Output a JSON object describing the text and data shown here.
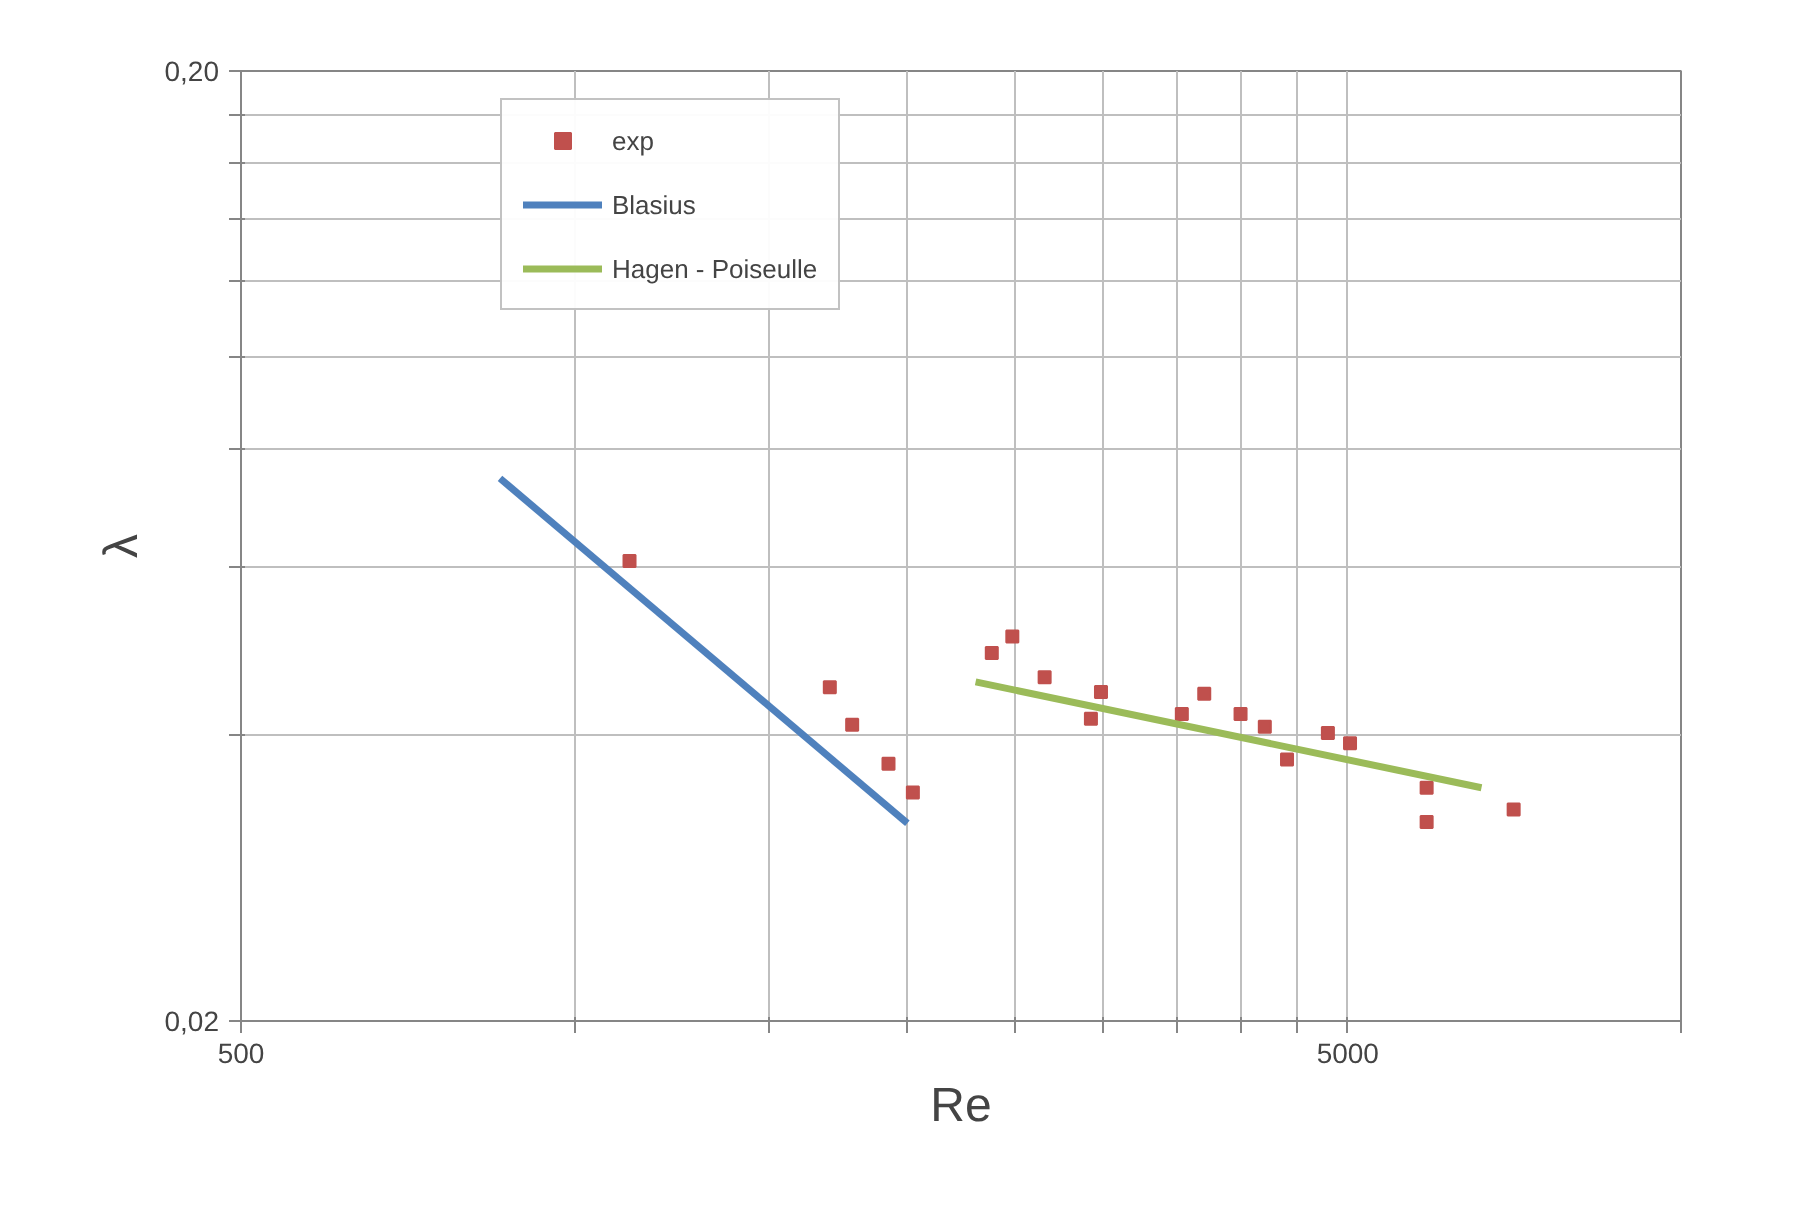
{
  "chart_data": {
    "type": "scatter",
    "xlabel": "Re",
    "ylabel": "λ",
    "log": "xy",
    "grid": true,
    "legend": "top left",
    "xlim": [
      500,
      10000
    ],
    "ylim": [
      0.02,
      0.2
    ],
    "xticks": [
      500,
      {
        "value": 1000,
        "label": null
      },
      {
        "value": 1500,
        "label": null
      },
      {
        "value": 2000,
        "label": null
      },
      {
        "value": 2500,
        "label": null
      },
      {
        "value": 3000,
        "label": null
      },
      {
        "value": 3500,
        "label": null
      },
      {
        "value": 4000,
        "label": null
      },
      {
        "value": 4500,
        "label": null
      },
      5000,
      {
        "value": 10000,
        "label": null
      }
    ],
    "yticks": [
      {
        "value": 0.02,
        "label": "0,02"
      },
      {
        "value": 0.04,
        "label": null
      },
      {
        "value": 0.06,
        "label": null
      },
      {
        "value": 0.08,
        "label": null
      },
      {
        "value": 0.1,
        "label": null
      },
      {
        "value": 0.12,
        "label": null
      },
      {
        "value": 0.14,
        "label": null
      },
      {
        "value": 0.16,
        "label": null
      },
      {
        "value": 0.18,
        "label": null
      },
      {
        "value": 0.2,
        "label": "0,20"
      }
    ],
    "series": [
      {
        "name": "exp",
        "marker": "square",
        "color": "#c0504d",
        "x": [
          1122,
          1702,
          1783,
          1923,
          2023,
          2384,
          2488,
          2661,
          2930,
          2992,
          3540,
          3709,
          4000,
          4207,
          4406,
          4797,
          5023,
          5891,
          5891,
          7060
        ],
        "values": [
          0.061,
          0.0449,
          0.041,
          0.0373,
          0.0348,
          0.0488,
          0.0508,
          0.046,
          0.0416,
          0.0444,
          0.0421,
          0.0442,
          0.0421,
          0.0408,
          0.0377,
          0.0402,
          0.0392,
          0.0352,
          0.0324,
          0.0334
        ]
      },
      {
        "name": "Blasius",
        "type": "line",
        "color": "#4f81bd",
        "x": [
          857,
          2000
        ],
        "values": [
          0.0745,
          0.0323
        ]
      },
      {
        "name": "Hagen - Poiseulle",
        "type": "line",
        "color": "#9bbb59",
        "x": [
          2305,
          6603
        ],
        "values": [
          0.0455,
          0.0352
        ]
      }
    ]
  }
}
